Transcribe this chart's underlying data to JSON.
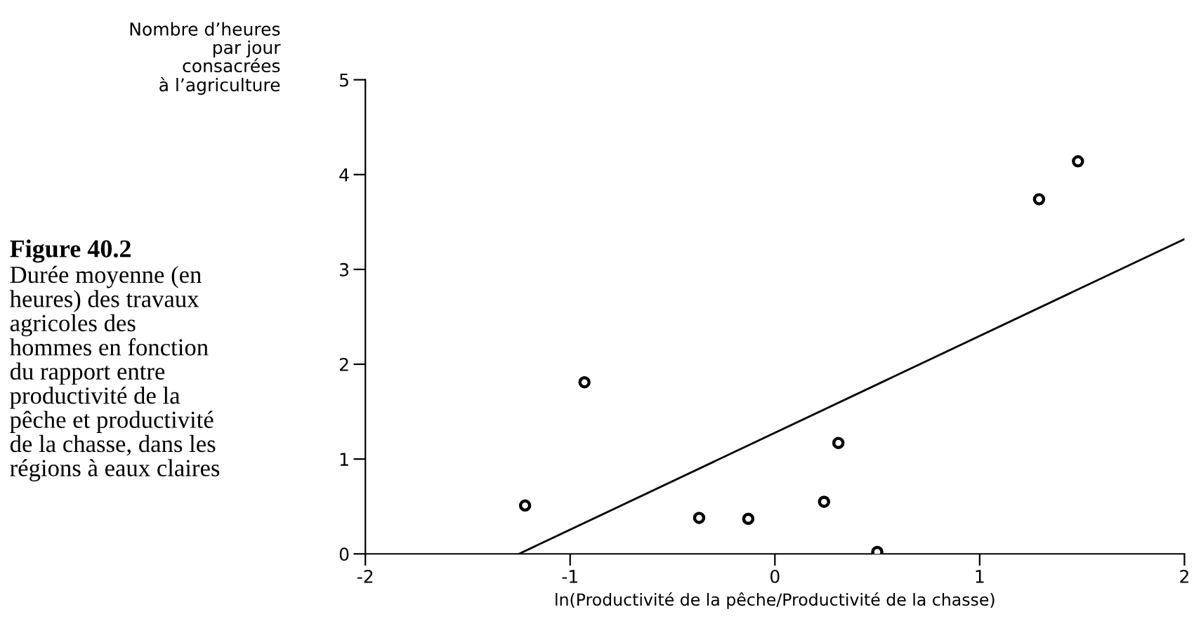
{
  "chart_data": {
    "type": "scatter",
    "title": "Figure 40.2",
    "subtitle": "Durée moyenne (en\nheures) des travaux\nagricoles des\nhommes en fonction\ndu rapport entre\nproductivité de la\npêche et productivité\nde la chasse, dans les\nrégions à eaux claires",
    "ylabel": "Nombre d’heures\npar jour\nconsacrées\nà l’agriculture",
    "xlabel": "ln(Productivité de la pêche/Productivité de la chasse)",
    "series": [
      {
        "color": "#000000",
        "marker": "circle",
        "x": [
          -1.22,
          -0.93,
          -0.37,
          -0.13,
          0.24,
          0.31,
          0.5,
          1.29,
          1.48
        ],
        "values": [
          0.51,
          1.81,
          0.38,
          0.37,
          0.55,
          1.17,
          0.02,
          3.74,
          4.14
        ]
      },
      {
        "type": "line",
        "color": "#000000",
        "x": [
          -1.25,
          2
        ],
        "values": [
          0,
          3.32
        ]
      }
    ],
    "xlim": [
      -2,
      2
    ],
    "xticks": [
      -2,
      -1,
      0,
      1,
      2
    ],
    "ylim": [
      0,
      5
    ],
    "yticks": [
      0,
      1,
      2,
      3,
      4,
      5
    ],
    "grid": false,
    "legend": false
  }
}
